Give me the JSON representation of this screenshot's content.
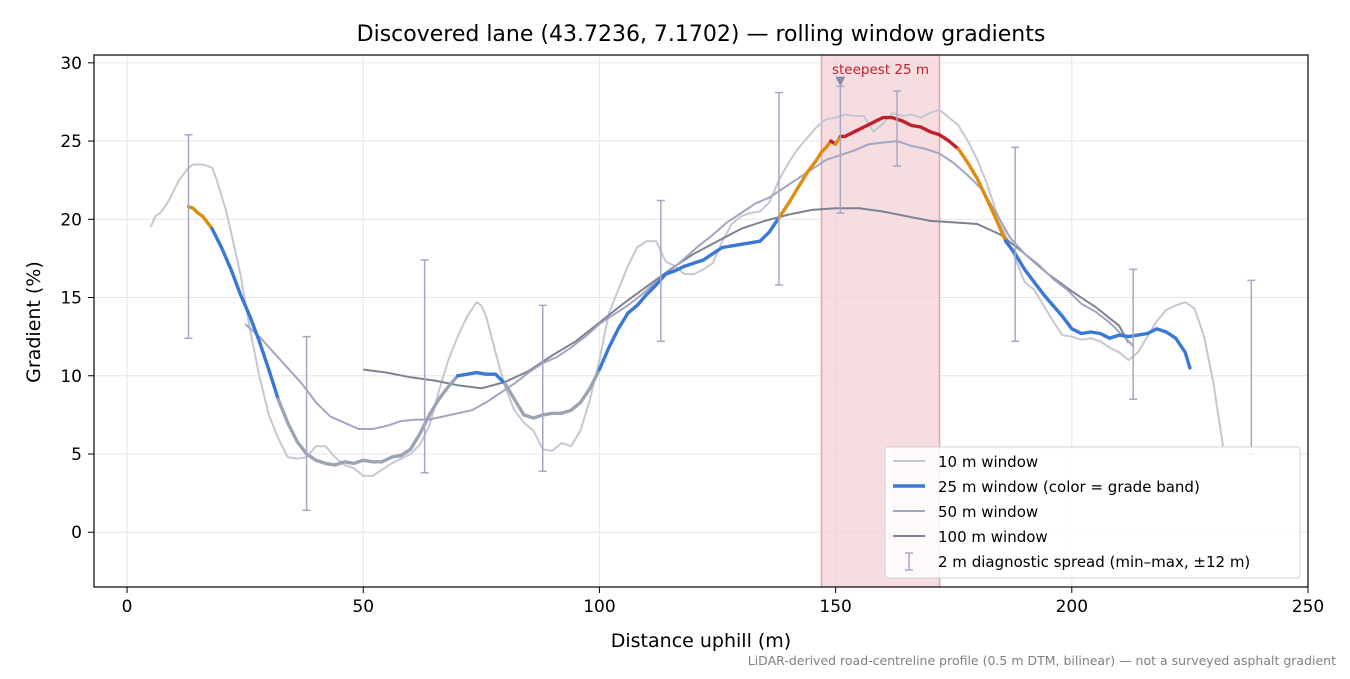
{
  "chart_data": {
    "type": "line",
    "title": "Discovered lane (43.7236, 7.1702) — rolling window gradients",
    "xlabel": "Distance uphill (m)",
    "ylabel": "Gradient (%)",
    "xlim": [
      -7,
      250
    ],
    "ylim": [
      -3.5,
      30.5
    ],
    "xticks": [
      0,
      50,
      100,
      150,
      200,
      250
    ],
    "yticks": [
      0,
      5,
      10,
      15,
      20,
      25,
      30
    ],
    "grid": true,
    "legend_position": "lower-right",
    "footnote": "LiDAR-derived road-centreline profile (0.5 m DTM, bilinear) — not a surveyed asphalt gradient",
    "highlight": {
      "label": "steepest 25 m",
      "x_start": 147,
      "x_end": 172,
      "marker_x": 151,
      "marker_y": 28.8
    },
    "colors": {
      "w10": "#c5c8d4",
      "w50": "#a3a6c2",
      "w100": "#7c8292",
      "band_gray": "#9aa4b4",
      "band_blue": "#3a78d6",
      "band_orange": "#e08c10",
      "band_red": "#c0202c",
      "highlight_fill": "#f2d2d6",
      "highlight_edge": "#e8a0aa",
      "highlight_text": "#c0202c",
      "errorbar": "#a8a6c6"
    },
    "series": [
      {
        "name": "10 m window",
        "x": [
          5,
          6,
          7,
          8,
          9,
          10,
          11,
          12,
          13,
          14,
          15,
          16,
          17,
          18,
          19,
          20,
          21,
          22,
          24,
          26,
          28,
          30,
          32,
          34,
          36,
          38,
          40,
          42,
          44,
          46,
          48,
          50,
          52,
          54,
          56,
          58,
          60,
          62,
          64,
          66,
          68,
          70,
          72,
          74,
          75,
          76,
          78,
          80,
          82,
          84,
          86,
          88,
          90,
          92,
          94,
          96,
          98,
          100,
          102,
          104,
          106,
          108,
          110,
          112,
          114,
          116,
          118,
          120,
          122,
          124,
          126,
          128,
          130,
          132,
          134,
          136,
          138,
          140,
          142,
          144,
          146,
          148,
          150,
          152,
          154,
          156,
          158,
          160,
          162,
          164,
          166,
          168,
          170,
          172,
          174,
          176,
          178,
          180,
          182,
          184,
          186,
          188,
          190,
          192,
          194,
          196,
          198,
          200,
          202,
          204,
          206,
          208,
          210,
          212,
          214,
          216,
          218,
          220,
          222,
          224,
          226,
          228,
          230,
          232
        ],
        "y": [
          19.5,
          20.2,
          20.4,
          20.8,
          21.3,
          21.9,
          22.5,
          22.9,
          23.3,
          23.5,
          23.5,
          23.5,
          23.4,
          23.3,
          22.5,
          21.5,
          20.5,
          19.2,
          16.5,
          13.0,
          10.0,
          7.5,
          6.0,
          4.8,
          4.7,
          4.8,
          5.5,
          5.5,
          4.8,
          4.3,
          4.1,
          3.6,
          3.6,
          4.0,
          4.4,
          4.7,
          5.0,
          5.6,
          6.8,
          9.0,
          11.0,
          12.5,
          13.8,
          14.7,
          14.5,
          13.8,
          11.5,
          9.3,
          7.8,
          7.0,
          6.5,
          5.3,
          5.2,
          5.7,
          5.5,
          6.5,
          8.5,
          11.0,
          14.0,
          15.5,
          17.0,
          18.2,
          18.6,
          18.6,
          17.3,
          17.0,
          16.5,
          16.5,
          16.8,
          17.2,
          18.6,
          19.7,
          20.2,
          20.4,
          20.5,
          21.1,
          22.5,
          23.6,
          24.5,
          25.2,
          25.9,
          26.4,
          26.5,
          26.7,
          26.6,
          26.6,
          25.6,
          26.1,
          26.8,
          26.6,
          26.7,
          26.5,
          26.8,
          27.0,
          26.5,
          26.0,
          25.0,
          23.8,
          22.3,
          20.5,
          19.0,
          17.5,
          16.0,
          15.5,
          14.5,
          13.5,
          12.6,
          12.5,
          12.3,
          12.4,
          12.2,
          11.8,
          11.5,
          11.0,
          11.5,
          12.5,
          13.5,
          14.2,
          14.5,
          14.7,
          14.3,
          12.5,
          9.5,
          5.5
        ]
      },
      {
        "name": "25 m window (color = grade band)",
        "x": [
          13,
          14,
          15,
          16,
          18,
          20,
          22,
          24,
          26,
          28,
          30,
          32,
          34,
          36,
          38,
          40,
          42,
          44,
          46,
          48,
          50,
          52,
          54,
          56,
          58,
          60,
          62,
          64,
          66,
          68,
          70,
          72,
          74,
          76,
          78,
          80,
          82,
          84,
          86,
          88,
          90,
          92,
          94,
          96,
          98,
          100,
          102,
          104,
          106,
          108,
          110,
          112,
          114,
          116,
          118,
          120,
          122,
          124,
          126,
          128,
          130,
          132,
          134,
          136,
          138,
          140,
          142,
          144,
          146,
          147,
          148,
          149,
          150,
          151,
          152,
          154,
          156,
          158,
          160,
          162,
          164,
          166,
          168,
          170,
          172,
          174,
          176,
          178,
          180,
          182,
          184,
          186,
          188,
          190,
          192,
          194,
          196,
          198,
          200,
          202,
          204,
          206,
          208,
          210,
          212,
          214,
          216,
          218,
          220,
          222,
          224,
          225
        ],
        "y": [
          20.8,
          20.7,
          20.4,
          20.2,
          19.4,
          18.2,
          16.8,
          15.2,
          13.8,
          12.2,
          10.4,
          8.5,
          7.0,
          5.8,
          5.0,
          4.6,
          4.4,
          4.3,
          4.5,
          4.4,
          4.6,
          4.5,
          4.5,
          4.8,
          4.9,
          5.3,
          6.3,
          7.5,
          8.5,
          9.3,
          10.0,
          10.1,
          10.2,
          10.1,
          10.1,
          9.5,
          8.5,
          7.5,
          7.3,
          7.5,
          7.6,
          7.6,
          7.8,
          8.3,
          9.2,
          10.4,
          11.8,
          13.0,
          14.0,
          14.5,
          15.2,
          15.8,
          16.5,
          16.7,
          17.0,
          17.2,
          17.4,
          17.8,
          18.2,
          18.3,
          18.4,
          18.5,
          18.6,
          19.2,
          20.1,
          21.0,
          22.0,
          23.0,
          23.8,
          24.3,
          24.6,
          25.0,
          24.8,
          25.3,
          25.3,
          25.6,
          25.9,
          26.2,
          26.5,
          26.5,
          26.3,
          26.0,
          25.9,
          25.6,
          25.4,
          25.0,
          24.5,
          23.6,
          22.6,
          21.3,
          20.0,
          18.6,
          17.8,
          16.8,
          16.0,
          15.2,
          14.5,
          13.8,
          13.0,
          12.7,
          12.8,
          12.7,
          12.4,
          12.6,
          12.5,
          12.6,
          12.7,
          13.0,
          12.8,
          12.4,
          11.5,
          10.5
        ],
        "band_thresholds": [
          10,
          20,
          25
        ]
      },
      {
        "name": "50 m window",
        "x": [
          25,
          28,
          31,
          34,
          37,
          40,
          43,
          46,
          49,
          52,
          55,
          58,
          61,
          64,
          67,
          70,
          73,
          76,
          79,
          82,
          85,
          88,
          91,
          94,
          97,
          100,
          103,
          106,
          109,
          112,
          115,
          118,
          121,
          124,
          127,
          130,
          133,
          136,
          139,
          142,
          145,
          148,
          151,
          154,
          157,
          160,
          163,
          166,
          169,
          172,
          175,
          178,
          181,
          184,
          187,
          190,
          193,
          196,
          199,
          202,
          205,
          208,
          211,
          213
        ],
        "y": [
          13.3,
          12.5,
          11.5,
          10.5,
          9.5,
          8.3,
          7.4,
          7.0,
          6.6,
          6.6,
          6.8,
          7.1,
          7.2,
          7.2,
          7.4,
          7.6,
          7.8,
          8.3,
          8.9,
          9.5,
          10.2,
          10.8,
          11.2,
          11.8,
          12.5,
          13.3,
          13.9,
          14.5,
          15.2,
          16.0,
          16.7,
          17.5,
          18.3,
          19.0,
          19.8,
          20.4,
          21.0,
          21.4,
          22.0,
          22.6,
          23.2,
          23.8,
          24.1,
          24.4,
          24.8,
          24.9,
          25.0,
          24.7,
          24.5,
          24.2,
          23.6,
          22.8,
          21.9,
          20.4,
          18.8,
          17.8,
          17.1,
          16.2,
          15.5,
          14.6,
          14.1,
          13.4,
          12.5,
          11.9
        ]
      },
      {
        "name": "100 m window",
        "x": [
          50,
          55,
          60,
          65,
          70,
          75,
          80,
          85,
          90,
          95,
          100,
          105,
          110,
          115,
          120,
          125,
          130,
          135,
          140,
          145,
          150,
          155,
          160,
          165,
          170,
          175,
          180,
          185,
          190,
          195,
          200,
          205,
          210,
          212
        ],
        "y": [
          10.4,
          10.2,
          9.9,
          9.7,
          9.4,
          9.2,
          9.6,
          10.3,
          11.3,
          12.2,
          13.4,
          14.6,
          15.7,
          16.8,
          17.8,
          18.6,
          19.4,
          19.9,
          20.3,
          20.6,
          20.7,
          20.7,
          20.5,
          20.2,
          19.9,
          19.8,
          19.7,
          19.0,
          17.8,
          16.5,
          15.4,
          14.4,
          13.2,
          12.1
        ]
      },
      {
        "name": "2 m diagnostic spread (min–max, ±12 m)",
        "x": [
          13,
          38,
          63,
          88,
          113,
          138,
          151,
          163,
          188,
          213,
          238
        ],
        "low": [
          12.4,
          1.4,
          3.8,
          3.9,
          12.2,
          15.8,
          20.4,
          23.4,
          12.2,
          8.5,
          5.0
        ],
        "high": [
          25.4,
          12.5,
          17.4,
          14.5,
          21.2,
          28.1,
          28.5,
          28.2,
          24.6,
          16.8,
          16.1
        ]
      }
    ]
  }
}
